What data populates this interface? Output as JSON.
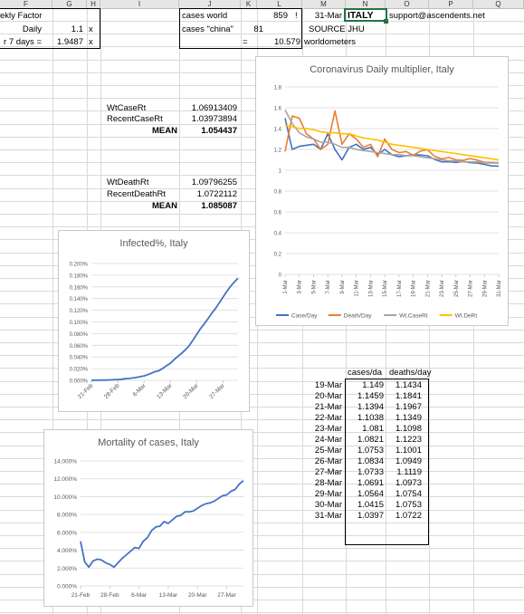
{
  "columns": [
    "F",
    "G",
    "H",
    "I",
    "J",
    "K",
    "L",
    "M",
    "N",
    "O",
    "P",
    "Q"
  ],
  "cells": {
    "f1": "ekly Factor",
    "f2": "Daily",
    "g2": "1.1",
    "h2": "x",
    "f3": "r 7 days =",
    "g3": "1.9487",
    "h3": "x",
    "j1": "cases world",
    "k1": "859",
    "l1": "!",
    "j2": "cases \"china\"",
    "k2": "81",
    "k3": "=",
    "l3": "10.579",
    "m1": "31-Mar",
    "n1": "ITALY",
    "o1": "support@ascendents.net",
    "m2": "SOURCE JHU",
    "m3": "worldometers"
  },
  "rates": {
    "wt_case_label": "WtCaseRt",
    "wt_case_value": "1.06913409",
    "recent_case_label": "RecentCaseRt",
    "recent_case_value": "1.03973894",
    "mean1_label": "MEAN",
    "mean1_value": "1.054437",
    "wt_death_label": "WtDeathRt",
    "wt_death_value": "1.09796255",
    "recent_death_label": "RecentDeathRt",
    "recent_death_value": "1.0722112",
    "mean2_label": "MEAN",
    "mean2_value": "1.085087"
  },
  "daily_table": {
    "headers": [
      "cases/da",
      "deaths/day"
    ],
    "rows": [
      {
        "date": "19-Mar",
        "cases": "1.149",
        "deaths": "1.1434"
      },
      {
        "date": "20-Mar",
        "cases": "1.1459",
        "deaths": "1.1841"
      },
      {
        "date": "21-Mar",
        "cases": "1.1394",
        "deaths": "1.1967"
      },
      {
        "date": "22-Mar",
        "cases": "1.1038",
        "deaths": "1.1349"
      },
      {
        "date": "23-Mar",
        "cases": "1.081",
        "deaths": "1.1098"
      },
      {
        "date": "24-Mar",
        "cases": "1.0821",
        "deaths": "1.1223"
      },
      {
        "date": "25-Mar",
        "cases": "1.0753",
        "deaths": "1.1001"
      },
      {
        "date": "26-Mar",
        "cases": "1.0834",
        "deaths": "1.0949"
      },
      {
        "date": "27-Mar",
        "cases": "1.0733",
        "deaths": "1.1119"
      },
      {
        "date": "28-Mar",
        "cases": "1.0691",
        "deaths": "1.0973"
      },
      {
        "date": "29-Mar",
        "cases": "1.0564",
        "deaths": "1.0754"
      },
      {
        "date": "30-Mar",
        "cases": "1.0415",
        "deaths": "1.0753"
      },
      {
        "date": "31-Mar",
        "cases": "1.0397",
        "deaths": "1.0722"
      }
    ]
  },
  "colors": {
    "blue": "#4472c4",
    "orange": "#ed7d31",
    "gray": "#a5a5a5",
    "gold": "#ffc000",
    "accent": "#217346"
  },
  "chart_data": [
    {
      "type": "line",
      "title": "Coronavirus Daily multiplier, Italy",
      "x": [
        "1-Mar",
        "2-Mar",
        "3-Mar",
        "4-Mar",
        "5-Mar",
        "6-Mar",
        "7-Mar",
        "8-Mar",
        "9-Mar",
        "10-Mar",
        "11-Mar",
        "12-Mar",
        "13-Mar",
        "14-Mar",
        "15-Mar",
        "16-Mar",
        "17-Mar",
        "18-Mar",
        "19-Mar",
        "20-Mar",
        "21-Mar",
        "22-Mar",
        "23-Mar",
        "24-Mar",
        "25-Mar",
        "26-Mar",
        "27-Mar",
        "28-Mar",
        "29-Mar",
        "30-Mar",
        "31-Mar"
      ],
      "xticks": [
        "1-Mar",
        "3-Mar",
        "5-Mar",
        "7-Mar",
        "9-Mar",
        "11-Mar",
        "13-Mar",
        "15-Mar",
        "17-Mar",
        "19-Mar",
        "21-Mar",
        "23-Mar",
        "25-Mar",
        "27-Mar",
        "29-Mar",
        "31-Mar"
      ],
      "yticks": [
        "0",
        "0.2",
        "0.4",
        "0.6",
        "0.8",
        "1",
        "1.2",
        "1.4",
        "1.6",
        "1.8"
      ],
      "ylim": [
        0,
        1.8
      ],
      "legend_position": "bottom",
      "series": [
        {
          "name": "Case/Day",
          "color": "#4472c4",
          "values": [
            1.5,
            1.2,
            1.23,
            1.24,
            1.25,
            1.2,
            1.35,
            1.2,
            1.1,
            1.22,
            1.25,
            1.2,
            1.22,
            1.15,
            1.2,
            1.15,
            1.13,
            1.14,
            1.149,
            1.1459,
            1.1394,
            1.1038,
            1.081,
            1.0821,
            1.0753,
            1.0834,
            1.0733,
            1.0691,
            1.0564,
            1.0415,
            1.0397
          ]
        },
        {
          "name": "Death/Day",
          "color": "#ed7d31",
          "values": [
            1.18,
            1.52,
            1.5,
            1.35,
            1.3,
            1.2,
            1.25,
            1.57,
            1.25,
            1.35,
            1.3,
            1.22,
            1.25,
            1.13,
            1.3,
            1.2,
            1.17,
            1.18,
            1.1434,
            1.1841,
            1.1967,
            1.1349,
            1.1098,
            1.1223,
            1.1001,
            1.0949,
            1.1119,
            1.0973,
            1.0754,
            1.0753,
            1.0722
          ]
        },
        {
          "name": "Wt.CaseRt",
          "color": "#a5a5a5",
          "values": [
            1.58,
            1.45,
            1.36,
            1.32,
            1.3,
            1.27,
            1.27,
            1.25,
            1.22,
            1.22,
            1.2,
            1.19,
            1.18,
            1.17,
            1.16,
            1.15,
            1.15,
            1.14,
            1.14,
            1.13,
            1.12,
            1.11,
            1.1,
            1.09,
            1.09,
            1.08,
            1.08,
            1.08,
            1.07,
            1.07,
            1.069
          ]
        },
        {
          "name": "Wt.DeRt",
          "color": "#ffc000",
          "values": [
            1.43,
            1.42,
            1.4,
            1.4,
            1.39,
            1.37,
            1.36,
            1.36,
            1.35,
            1.35,
            1.33,
            1.31,
            1.3,
            1.29,
            1.27,
            1.25,
            1.24,
            1.23,
            1.22,
            1.21,
            1.2,
            1.19,
            1.18,
            1.17,
            1.16,
            1.15,
            1.14,
            1.13,
            1.12,
            1.11,
            1.098
          ]
        }
      ]
    },
    {
      "type": "line",
      "title": "Infected%, Italy",
      "x": [
        "21-Feb",
        "22-Feb",
        "23-Feb",
        "24-Feb",
        "25-Feb",
        "26-Feb",
        "27-Feb",
        "28-Feb",
        "29-Feb",
        "1-Mar",
        "2-Mar",
        "3-Mar",
        "4-Mar",
        "5-Mar",
        "6-Mar",
        "7-Mar",
        "8-Mar",
        "9-Mar",
        "10-Mar",
        "11-Mar",
        "12-Mar",
        "13-Mar",
        "14-Mar",
        "15-Mar",
        "16-Mar",
        "17-Mar",
        "18-Mar",
        "19-Mar",
        "20-Mar",
        "21-Mar",
        "22-Mar",
        "23-Mar",
        "24-Mar",
        "25-Mar",
        "26-Mar",
        "27-Mar",
        "28-Mar",
        "29-Mar",
        "30-Mar",
        "31-Mar"
      ],
      "xticks": [
        "21-Feb",
        "28-Feb",
        "6-Mar",
        "13-Mar",
        "20-Mar",
        "27-Mar"
      ],
      "yticks": [
        "0.000%",
        "0.020%",
        "0.040%",
        "0.060%",
        "0.080%",
        "0.100%",
        "0.120%",
        "0.140%",
        "0.160%",
        "0.180%",
        "0.200%"
      ],
      "ylim": [
        0,
        0.2
      ],
      "series": [
        {
          "color": "#4472c4",
          "values": [
            0.0001,
            0.0002,
            0.0003,
            0.0004,
            0.0005,
            0.0007,
            0.0011,
            0.0014,
            0.0018,
            0.0028,
            0.0033,
            0.0041,
            0.0051,
            0.0063,
            0.0076,
            0.0097,
            0.0122,
            0.0152,
            0.0167,
            0.0206,
            0.0251,
            0.0292,
            0.0355,
            0.041,
            0.0462,
            0.0524,
            0.0593,
            0.0688,
            0.0785,
            0.0883,
            0.0966,
            0.1055,
            0.1145,
            0.123,
            0.1325,
            0.1425,
            0.152,
            0.161,
            0.168,
            0.175
          ]
        }
      ]
    },
    {
      "type": "line",
      "title": "Mortality of cases, Italy",
      "x": [
        "21-Feb",
        "22-Feb",
        "23-Feb",
        "24-Feb",
        "25-Feb",
        "26-Feb",
        "27-Feb",
        "28-Feb",
        "29-Feb",
        "1-Mar",
        "2-Mar",
        "3-Mar",
        "4-Mar",
        "5-Mar",
        "6-Mar",
        "7-Mar",
        "8-Mar",
        "9-Mar",
        "10-Mar",
        "11-Mar",
        "12-Mar",
        "13-Mar",
        "14-Mar",
        "15-Mar",
        "16-Mar",
        "17-Mar",
        "18-Mar",
        "19-Mar",
        "20-Mar",
        "21-Mar",
        "22-Mar",
        "23-Mar",
        "24-Mar",
        "25-Mar",
        "26-Mar",
        "27-Mar",
        "28-Mar",
        "29-Mar",
        "30-Mar",
        "31-Mar"
      ],
      "xticks": [
        "21-Feb",
        "28-Feb",
        "6-Mar",
        "13-Mar",
        "20-Mar",
        "27-Mar"
      ],
      "yticks": [
        "0.000%",
        "2.000%",
        "4.000%",
        "6.000%",
        "8.000%",
        "10.000%",
        "12.000%",
        "14.000%"
      ],
      "ylim": [
        0,
        14
      ],
      "series": [
        {
          "color": "#4472c4",
          "values": [
            5.0,
            2.7,
            2.1,
            2.8,
            3.0,
            2.9,
            2.6,
            2.4,
            2.1,
            2.6,
            3.1,
            3.5,
            3.9,
            4.3,
            4.2,
            5.0,
            5.4,
            6.2,
            6.6,
            6.7,
            7.2,
            7.0,
            7.4,
            7.8,
            7.9,
            8.3,
            8.3,
            8.4,
            8.7,
            9.0,
            9.2,
            9.3,
            9.5,
            9.8,
            10.1,
            10.2,
            10.6,
            10.8,
            11.4,
            11.8
          ]
        }
      ]
    }
  ]
}
